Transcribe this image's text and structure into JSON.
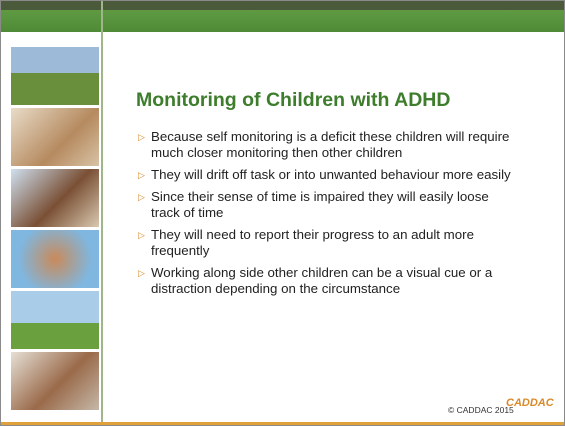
{
  "slide": {
    "title": "Monitoring of Children with ADHD",
    "bullets": [
      "Because self monitoring is a deficit these children will require much closer monitoring then other children",
      "They will drift off task or into unwanted behaviour more easily",
      "Since their sense of time is impaired they will easily loose track of time",
      "They will need to report their progress to an adult more frequently",
      "Working along side other children can be a visual cue or a distraction depending on the circumstance"
    ],
    "footer": "© CADDAC 2015",
    "logo": "CADDAC"
  }
}
